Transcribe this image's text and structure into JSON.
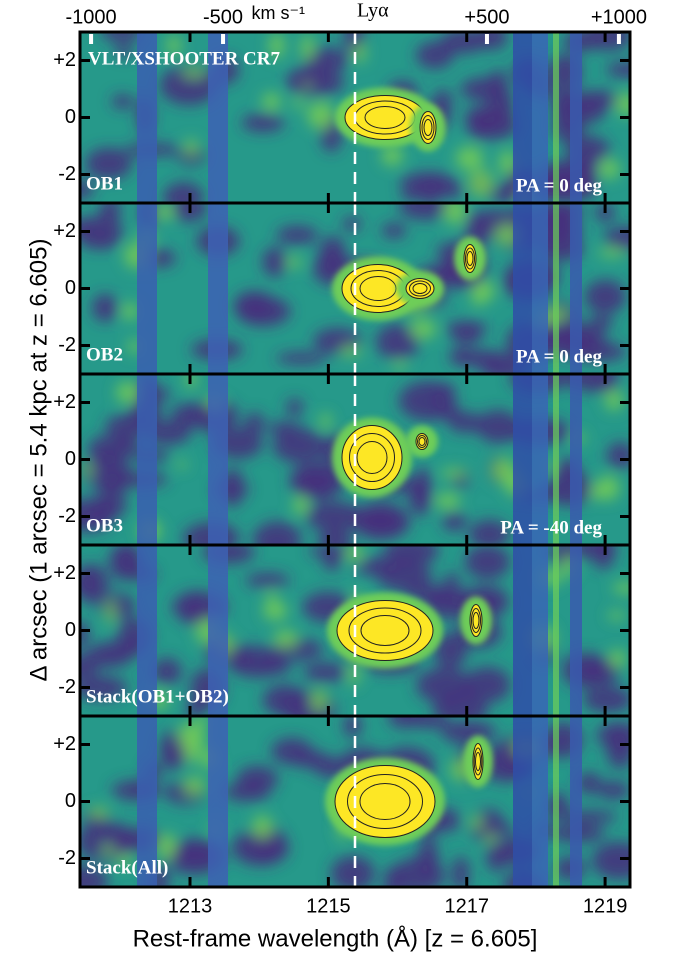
{
  "chart_data": {
    "type": "heatmap",
    "title": "VLT/XSHOOTER CR7",
    "xlabel": "Rest-frame wavelength (Å) [z = 6.605]",
    "ylabel": "Δ arcsec (1 arcsec = 5.4 kpc at z = 6.605)",
    "xlim": [
      1211.41,
      1219.36
    ],
    "xticks": [
      1213,
      1215,
      1217,
      1219
    ],
    "x2label": "km s⁻¹",
    "x2lim": [
      -1042,
      1042
    ],
    "x2ticks": [
      -1000,
      -500,
      {
        "value": 500,
        "label": "+500"
      },
      {
        "value": 1000,
        "label": "+1000"
      }
    ],
    "annotation": {
      "text": "Lyα",
      "x2": 0
    },
    "panels": [
      {
        "label": "OB1",
        "pa": "PA = 0 deg",
        "ylim": [
          -3,
          3
        ],
        "yticks": [
          {
            "value": 2,
            "label": "+2"
          },
          0,
          -2
        ]
      },
      {
        "label": "OB2",
        "pa": "PA = 0 deg",
        "ylim": [
          -3,
          3
        ],
        "yticks": [
          {
            "value": 2,
            "label": "+2"
          },
          0,
          -2
        ]
      },
      {
        "label": "OB3",
        "pa": "PA = -40 deg",
        "ylim": [
          -3,
          3
        ],
        "yticks": [
          {
            "value": 2,
            "label": "+2"
          },
          0,
          -2
        ]
      },
      {
        "label": "Stack(OB1+OB2)",
        "ylim": [
          -3,
          3
        ],
        "yticks": [
          {
            "value": 2,
            "label": "+2"
          },
          0,
          -2
        ]
      },
      {
        "label": "Stack(All)",
        "ylim": [
          -3,
          3
        ],
        "yticks": [
          {
            "value": 2,
            "label": "+2"
          },
          0,
          -2
        ]
      }
    ]
  }
}
